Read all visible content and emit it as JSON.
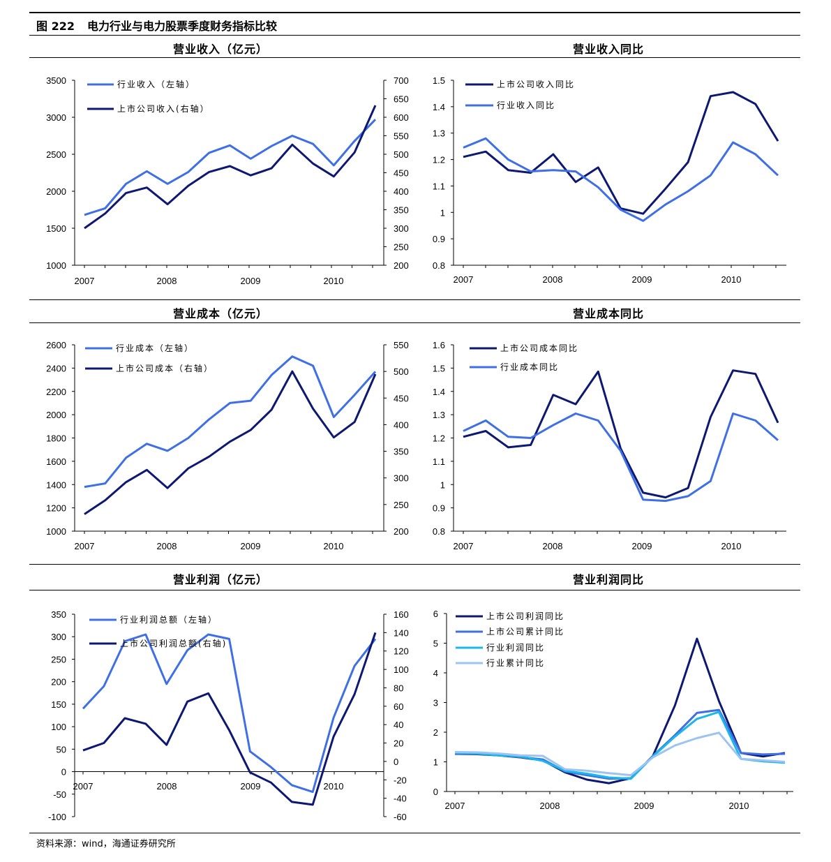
{
  "figure": {
    "number": "图 222",
    "title": "电力行业与电力股票季度财务指标比较",
    "source": "资料来源：wind，海通证券研究所"
  },
  "colors": {
    "dark_navy": "#0d1873",
    "medium_blue": "#3f6fe6",
    "cyan": "#1ab7ea",
    "light_blue": "#9cc3f2"
  },
  "chart_data": [
    {
      "title": "营业收入（亿元）",
      "type": "line",
      "x_ticks": [
        "2007",
        "2008",
        "2009",
        "2010"
      ],
      "y_left": {
        "ticks": [
          "3500",
          "3000",
          "2500",
          "2000",
          "1500",
          "1000"
        ],
        "range": [
          1000,
          3500
        ]
      },
      "y_right": {
        "ticks": [
          "700",
          "650",
          "600",
          "550",
          "500",
          "450",
          "400",
          "350",
          "300",
          "250",
          "200"
        ],
        "range": [
          200,
          700
        ]
      },
      "legend_placement": "top-left",
      "series": [
        {
          "name": "行业收入（左轴）",
          "axis": "left",
          "color": "#3f6fe6",
          "values": [
            1680,
            1770,
            2100,
            2270,
            2100,
            2260,
            2520,
            2620,
            2440,
            2610,
            2750,
            2640,
            2350,
            2680,
            2970
          ]
        },
        {
          "name": "上市公司收入(右轴）",
          "axis": "right",
          "color": "#0d1873",
          "values": [
            300,
            340,
            395,
            410,
            365,
            415,
            452,
            468,
            443,
            462,
            526,
            475,
            440,
            505,
            632
          ]
        }
      ]
    },
    {
      "title": "营业收入同比",
      "type": "line",
      "x_ticks": [
        "2007",
        "2008",
        "2009",
        "2010"
      ],
      "y_left": {
        "ticks": [
          "1.5",
          "1.4",
          "1.3",
          "1.2",
          "1.1",
          "1",
          "0.9",
          "0.8"
        ],
        "range": [
          0.8,
          1.5
        ]
      },
      "legend_placement": "top-left",
      "series": [
        {
          "name": "上市公司收入同比",
          "axis": "left",
          "color": "#0d1873",
          "values": [
            1.21,
            1.23,
            1.16,
            1.15,
            1.22,
            1.115,
            1.17,
            1.015,
            0.995,
            1.09,
            1.19,
            1.44,
            1.455,
            1.41,
            1.27
          ]
        },
        {
          "name": "行业收入同比",
          "axis": "left",
          "color": "#3f6fe6",
          "values": [
            1.245,
            1.28,
            1.2,
            1.155,
            1.16,
            1.155,
            1.095,
            1.01,
            0.968,
            1.03,
            1.08,
            1.14,
            1.265,
            1.22,
            1.14
          ]
        }
      ]
    },
    {
      "title": "营业成本（亿元）",
      "type": "line",
      "x_ticks": [
        "2007",
        "2008",
        "2009",
        "2010"
      ],
      "y_left": {
        "ticks": [
          "2600",
          "2400",
          "2200",
          "2000",
          "1800",
          "1600",
          "1400",
          "1200",
          "1000"
        ],
        "range": [
          1000,
          2600
        ]
      },
      "y_right": {
        "ticks": [
          "550",
          "500",
          "450",
          "400",
          "350",
          "300",
          "250",
          "200"
        ],
        "range": [
          200,
          550
        ]
      },
      "legend_placement": "top-left",
      "series": [
        {
          "name": "行业成本（左轴）",
          "axis": "left",
          "color": "#3f6fe6",
          "values": [
            1380,
            1410,
            1630,
            1750,
            1690,
            1800,
            1960,
            2100,
            2120,
            2340,
            2500,
            2420,
            1980,
            2170,
            2370
          ]
        },
        {
          "name": "上市公司成本（右轴）",
          "axis": "right",
          "color": "#0d1873",
          "values": [
            232,
            258,
            292,
            315,
            281,
            318,
            340,
            368,
            390,
            428,
            500,
            430,
            376,
            405,
            495
          ]
        }
      ]
    },
    {
      "title": "营业成本同比",
      "type": "line",
      "x_ticks": [
        "2007",
        "2008",
        "2009",
        "2010"
      ],
      "y_left": {
        "ticks": [
          "1.6",
          "1.5",
          "1.4",
          "1.3",
          "1.2",
          "1.1",
          "1",
          "0.9",
          "0.8"
        ],
        "range": [
          0.8,
          1.6
        ]
      },
      "legend_placement": "top-left",
      "series": [
        {
          "name": "上市公司成本同比",
          "axis": "left",
          "color": "#0d1873",
          "values": [
            1.205,
            1.23,
            1.16,
            1.17,
            1.385,
            1.345,
            1.485,
            1.155,
            0.965,
            0.945,
            0.985,
            1.29,
            1.49,
            1.475,
            1.265
          ]
        },
        {
          "name": "行业成本同比",
          "axis": "left",
          "color": "#3f6fe6",
          "values": [
            1.23,
            1.275,
            1.205,
            1.2,
            1.255,
            1.305,
            1.275,
            1.145,
            0.935,
            0.93,
            0.95,
            1.015,
            1.305,
            1.275,
            1.19
          ]
        }
      ]
    },
    {
      "title": "营业利润（亿元）",
      "type": "line",
      "x_ticks": [
        "2007",
        "2008",
        "2009",
        "2010"
      ],
      "y_left": {
        "ticks": [
          "350",
          "300",
          "250",
          "200",
          "150",
          "100",
          "50",
          "0",
          "-50",
          "-100"
        ],
        "range": [
          -100,
          350
        ]
      },
      "y_right": {
        "ticks": [
          "160",
          "140",
          "120",
          "100",
          "80",
          "60",
          "40",
          "20",
          "0",
          "-20",
          "-40",
          "-60"
        ],
        "range": [
          -60,
          160
        ]
      },
      "legend_placement": "top-left",
      "series": [
        {
          "name": "行业利润总额（左轴）",
          "axis": "left",
          "color": "#3f6fe6",
          "values": [
            140,
            190,
            290,
            305,
            195,
            270,
            305,
            295,
            45,
            10,
            -30,
            -45,
            120,
            235,
            295
          ]
        },
        {
          "name": "上市公司利润总额(右轴)",
          "axis": "right",
          "color": "#0d1873",
          "values": [
            12,
            20,
            47,
            41,
            18,
            65,
            74,
            34,
            -12,
            -23,
            -44,
            -47,
            27,
            73,
            140
          ]
        }
      ]
    },
    {
      "title": "营业利润同比",
      "type": "line",
      "x_ticks": [
        "2007",
        "2008",
        "2009",
        "2010"
      ],
      "y_left": {
        "ticks": [
          "6",
          "5",
          "4",
          "3",
          "2",
          "1",
          "0"
        ],
        "range": [
          0,
          6
        ]
      },
      "legend_placement": "top-left",
      "series": [
        {
          "name": "上市公司利润同比",
          "axis": "left",
          "color": "#0d1873",
          "values": [
            1.27,
            1.26,
            1.22,
            1.15,
            1.05,
            0.65,
            0.4,
            0.28,
            0.45,
            1.2,
            2.9,
            5.15,
            3.05,
            1.3,
            1.18,
            1.3
          ]
        },
        {
          "name": "上市公司累计同比",
          "axis": "left",
          "color": "#3f6fe6",
          "values": [
            1.28,
            1.27,
            1.23,
            1.16,
            1.08,
            0.68,
            0.55,
            0.43,
            0.45,
            1.2,
            1.9,
            2.65,
            2.75,
            1.3,
            1.25,
            1.27
          ]
        },
        {
          "name": "行业利润同比",
          "axis": "left",
          "color": "#1ab7ea",
          "values": [
            1.3,
            1.28,
            1.22,
            1.18,
            1.03,
            0.7,
            0.6,
            0.47,
            0.43,
            1.18,
            1.85,
            2.45,
            2.68,
            1.1,
            1.02,
            0.97
          ]
        },
        {
          "name": "行业累计同比",
          "axis": "left",
          "color": "#9cc3f2",
          "values": [
            1.33,
            1.32,
            1.28,
            1.22,
            1.2,
            0.75,
            0.7,
            0.62,
            0.55,
            1.15,
            1.55,
            1.8,
            1.98,
            1.1,
            1.05,
            1.0
          ]
        }
      ]
    }
  ]
}
